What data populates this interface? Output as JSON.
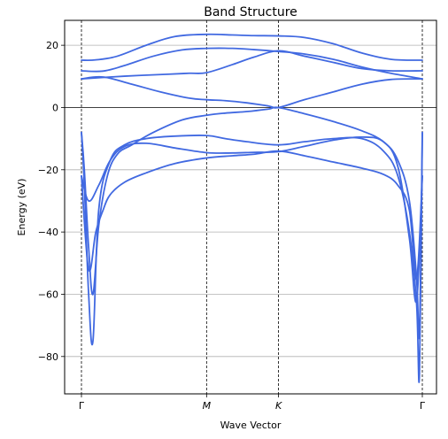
{
  "chart_data": {
    "type": "line",
    "title": "Band Structure",
    "xlabel": "Wave Vector",
    "ylabel": "Energy (eV)",
    "ylim": [
      -92,
      28
    ],
    "yticks": [
      20,
      0,
      -20,
      -40,
      -60,
      -80
    ],
    "ytick_labels": [
      "20",
      "0",
      "−20",
      "−40",
      "−60",
      "−80"
    ],
    "xlim": [
      0,
      2.4
    ],
    "xticks": [
      {
        "label": "Γ",
        "x": 0,
        "italic": false
      },
      {
        "label": "M",
        "x": 0.87,
        "italic": true
      },
      {
        "label": "K",
        "x": 1.37,
        "italic": true
      },
      {
        "label": "Γ",
        "x": 2.37,
        "italic": false
      }
    ],
    "grid": true,
    "zero_line": true,
    "series_color": "#4169e1",
    "series": [
      {
        "x": [
          0,
          0.1,
          0.25,
          0.45,
          0.65,
          0.87,
          1.05,
          1.2,
          1.37,
          1.55,
          1.75,
          1.95,
          2.15,
          2.37
        ],
        "values": [
          15.2,
          15.3,
          16.5,
          20,
          22.8,
          23.5,
          23.3,
          23.1,
          23,
          22.5,
          20.5,
          17.5,
          15.5,
          15.2
        ]
      },
      {
        "x": [
          0,
          0.15,
          0.3,
          0.5,
          0.7,
          0.87,
          1.05,
          1.2,
          1.37,
          1.55,
          1.75,
          1.95,
          2.15,
          2.37
        ],
        "values": [
          11.8,
          11.7,
          13.5,
          16.5,
          18.5,
          19,
          19,
          18.6,
          18,
          17.2,
          15.5,
          13,
          11,
          9.2
        ]
      },
      {
        "x": [
          0,
          0.2,
          0.4,
          0.6,
          0.75,
          0.87,
          1.05,
          1.2,
          1.37,
          1.55,
          1.75,
          1.95,
          2.15,
          2.37
        ],
        "values": [
          9.2,
          9.8,
          10.3,
          10.7,
          11,
          11.2,
          13.8,
          16.2,
          18.2,
          16.5,
          14.5,
          12.5,
          11.8,
          11.8
        ]
      },
      {
        "x": [
          0,
          0.15,
          0.35,
          0.55,
          0.75,
          0.87,
          1.0,
          1.15,
          1.3,
          1.37,
          1.55,
          1.75,
          1.95,
          2.15,
          2.37
        ],
        "values": [
          9.2,
          9.8,
          7.5,
          5,
          3,
          2.5,
          2.2,
          1.5,
          0.5,
          0,
          2.5,
          5,
          7.5,
          9,
          9.2
        ]
      },
      {
        "x": [
          0,
          0.02,
          0.05,
          0.08,
          0.12,
          0.18,
          0.25,
          0.35,
          0.5,
          0.7,
          0.87,
          1.0,
          1.15,
          1.3,
          1.37,
          1.55,
          1.75,
          1.95,
          2.1,
          2.2,
          2.28,
          2.33,
          2.35,
          2.37
        ],
        "values": [
          -8,
          -20,
          -45,
          -60,
          -38,
          -22,
          -15,
          -12,
          -8,
          -4,
          -2.5,
          -1.8,
          -1.3,
          -0.5,
          0,
          -2,
          -4.5,
          -7.5,
          -11,
          -17,
          -30,
          -55,
          -72,
          -8
        ]
      },
      {
        "x": [
          0,
          0.02,
          0.05,
          0.08,
          0.12,
          0.2,
          0.3,
          0.45,
          0.65,
          0.87,
          1.0,
          1.15,
          1.37,
          1.55,
          1.75,
          1.95,
          2.1,
          2.2,
          2.28,
          2.33,
          2.35,
          2.37
        ],
        "values": [
          -8,
          -25,
          -60,
          -75,
          -33,
          -17,
          -12,
          -10,
          -9.2,
          -9,
          -10,
          -11,
          -12,
          -11,
          -10,
          -10,
          -14,
          -22,
          -40,
          -63,
          -86,
          -8
        ]
      },
      {
        "x": [
          0,
          0.05,
          0.12,
          0.2,
          0.3,
          0.45,
          0.65,
          0.87,
          1.05,
          1.2,
          1.37,
          1.55,
          1.75,
          1.95,
          2.1,
          2.2,
          2.28,
          2.33,
          2.37
        ],
        "values": [
          -22,
          -30,
          -25,
          -17,
          -12.5,
          -11.5,
          -13,
          -14.5,
          -14.6,
          -14.4,
          -14.2,
          -12.5,
          -10.5,
          -9.5,
          -11,
          -19,
          -42,
          -62,
          -22
        ]
      },
      {
        "x": [
          0,
          0.05,
          0.1,
          0.15,
          0.2,
          0.3,
          0.45,
          0.65,
          0.87,
          1.05,
          1.2,
          1.37,
          1.55,
          1.75,
          1.95,
          2.1,
          2.2,
          2.28,
          2.33,
          2.37
        ],
        "values": [
          -22,
          -52,
          -40,
          -33,
          -28,
          -24,
          -21,
          -18,
          -16.2,
          -15.5,
          -15,
          -14,
          -15.5,
          -17.5,
          -19.5,
          -21.5,
          -25,
          -33,
          -55,
          -22
        ]
      }
    ]
  }
}
